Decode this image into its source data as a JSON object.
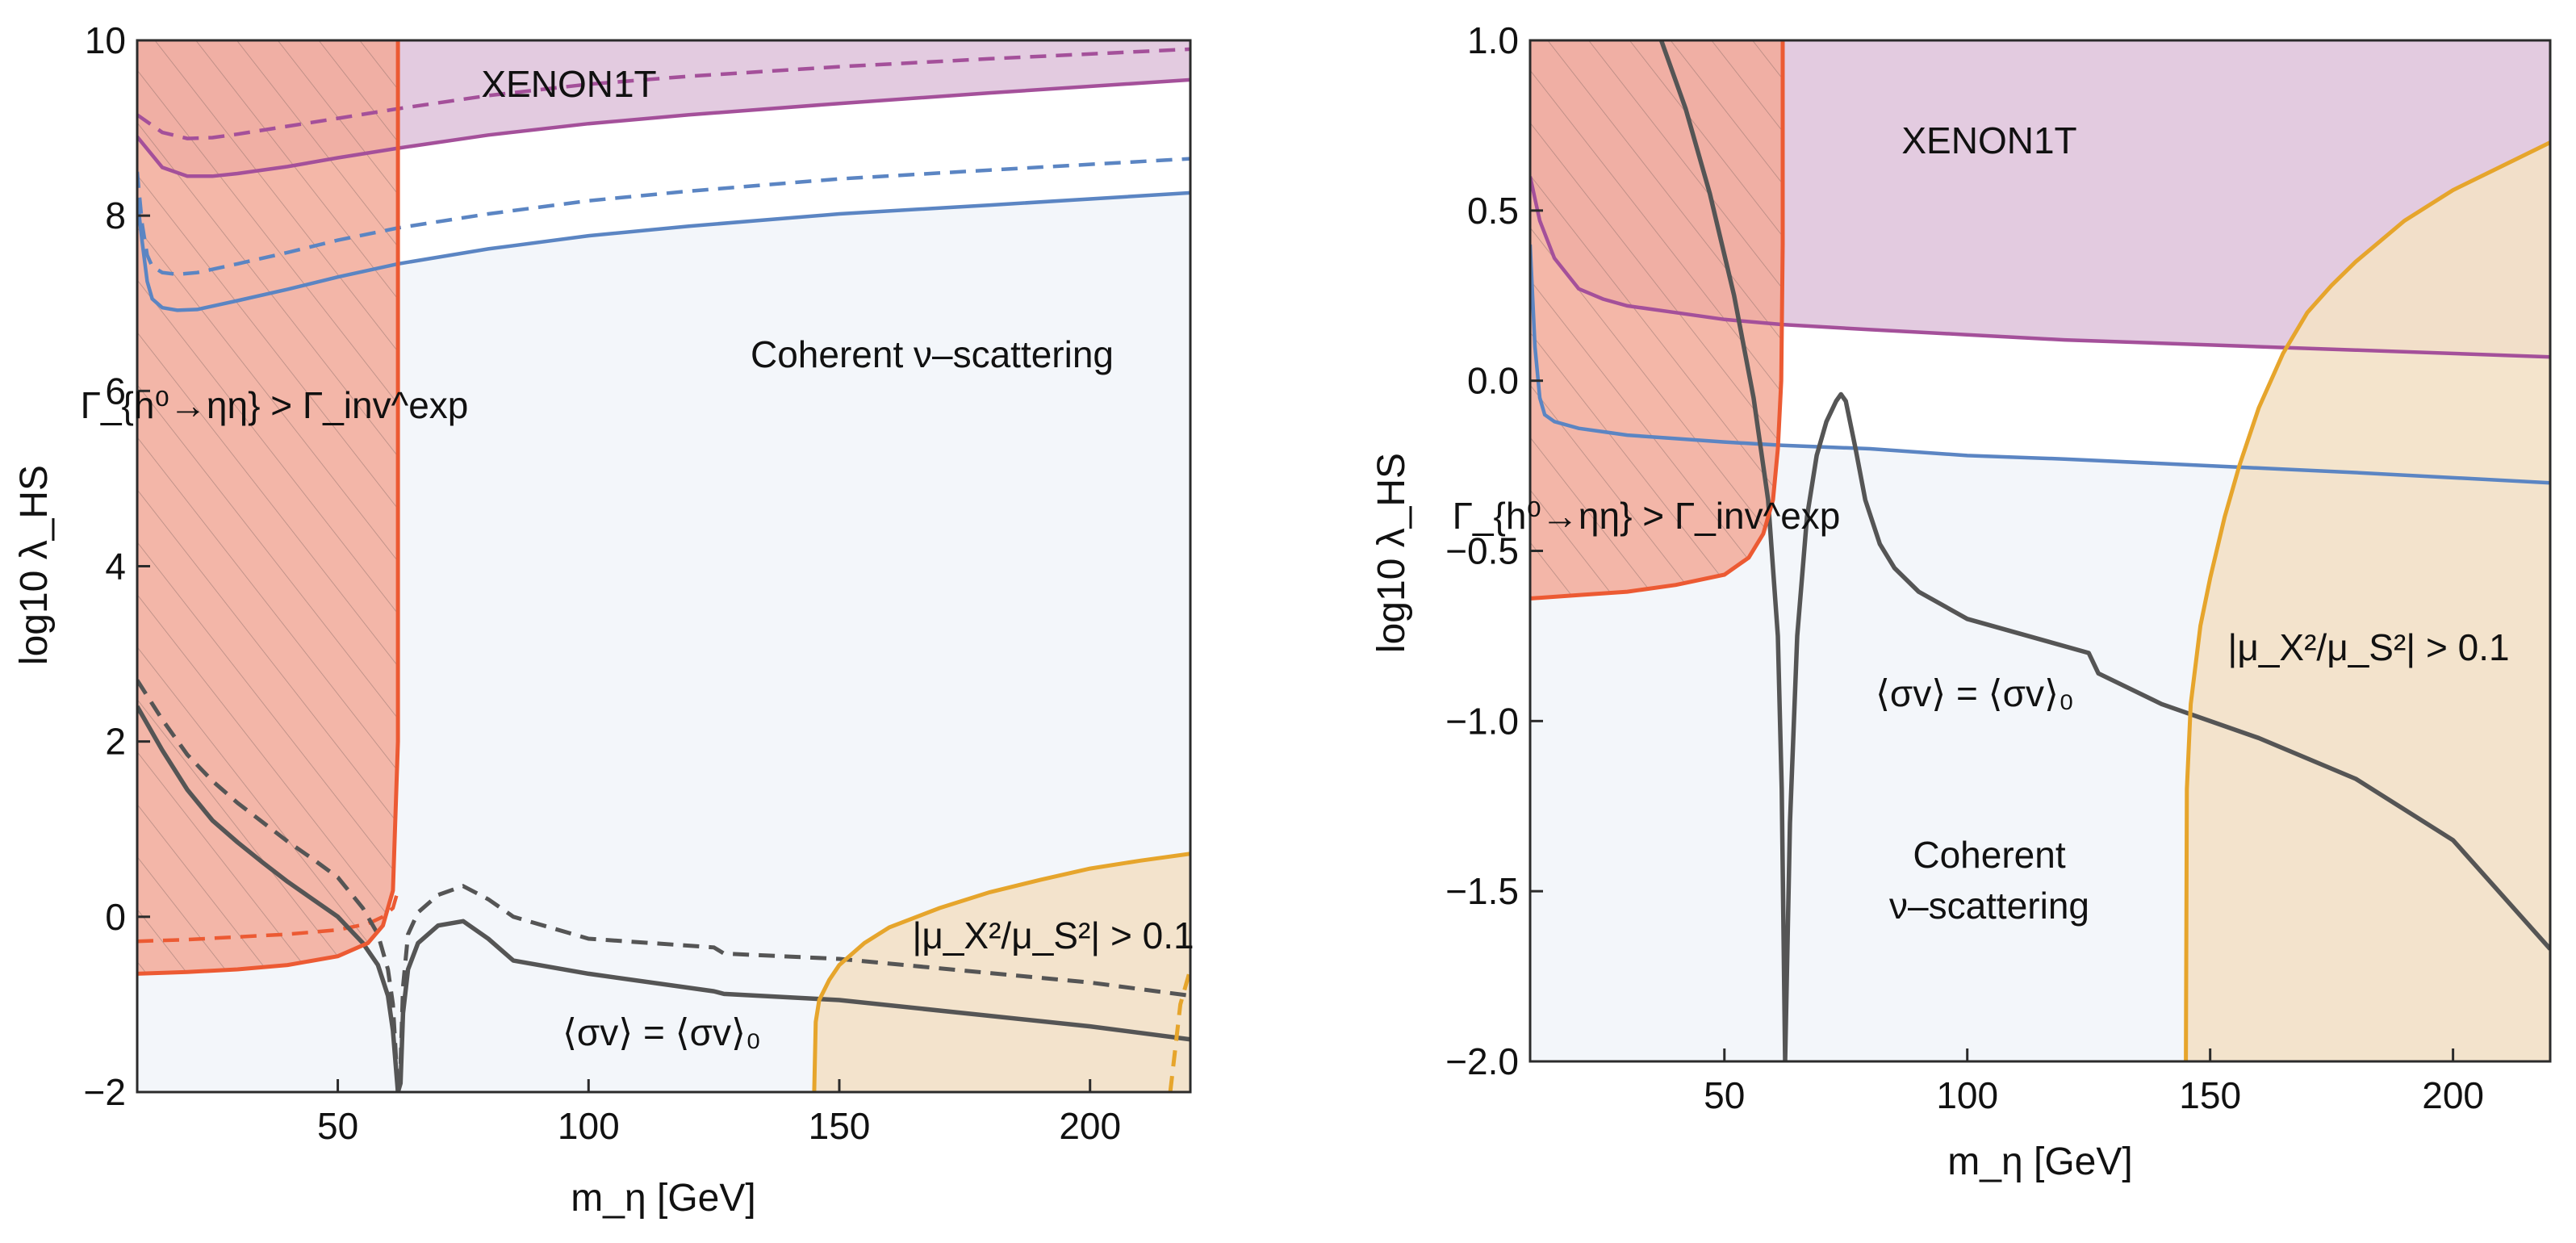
{
  "chart_data": [
    {
      "type": "line",
      "panel": "left",
      "xlabel": "m_η [GeV]",
      "ylabel": "log10 λ_HS",
      "xlim": [
        10,
        220
      ],
      "ylim": [
        -2,
        10
      ],
      "xticks": [
        50,
        100,
        150,
        200
      ],
      "xtick_labels": [
        "50",
        "100",
        "150",
        "200"
      ],
      "yticks": [
        -2,
        0,
        2,
        4,
        6,
        8,
        10
      ],
      "ytick_labels": [
        "−2",
        "0",
        "2",
        "4",
        "6",
        "8",
        "10"
      ],
      "colors": {
        "xenon": "#a4509a",
        "xenon_fill": "#e3cbe0",
        "coherent": "#5b85c3",
        "coherent_fill": "#f3f6fa",
        "higgs": "#ec5a33",
        "higgs_fill": "#f2aa99",
        "mu": "#e6a52c",
        "mu_fill": "#f3e1c7",
        "relic": "#555555"
      },
      "labels": {
        "xenon": "XENON1T",
        "coherent": "Coherent ν–scattering",
        "higgs": "Γ_{h⁰→ηη} > Γ_inv^exp",
        "mu": "|μ_X²/μ_S²| > 0.1",
        "relic": "⟨σv⟩ = ⟨σv⟩₀"
      },
      "series": [
        {
          "name": "xenon_solid",
          "x": [
            10,
            15,
            20,
            25,
            30,
            40,
            50,
            62,
            80,
            100,
            120,
            150,
            180,
            220
          ],
          "y": [
            8.9,
            8.55,
            8.45,
            8.45,
            8.48,
            8.56,
            8.66,
            8.77,
            8.92,
            9.05,
            9.15,
            9.28,
            9.4,
            9.55
          ]
        },
        {
          "name": "xenon_dashed",
          "x": [
            10,
            15,
            20,
            25,
            30,
            40,
            50,
            62,
            80,
            100,
            120,
            150,
            180,
            220
          ],
          "y": [
            9.15,
            8.95,
            8.88,
            8.89,
            8.93,
            9.02,
            9.11,
            9.22,
            9.37,
            9.5,
            9.59,
            9.7,
            9.79,
            9.9
          ]
        },
        {
          "name": "coherent_solid",
          "x": [
            10,
            11,
            12,
            13,
            15,
            18,
            22,
            26,
            30,
            40,
            50,
            62,
            80,
            100,
            120,
            150,
            180,
            220
          ],
          "y": [
            8.2,
            7.7,
            7.25,
            7.05,
            6.95,
            6.92,
            6.93,
            6.98,
            7.03,
            7.16,
            7.3,
            7.45,
            7.62,
            7.77,
            7.88,
            8.02,
            8.12,
            8.26
          ]
        },
        {
          "name": "coherent_dashed",
          "x": [
            10,
            11,
            12,
            13,
            15,
            18,
            22,
            26,
            30,
            40,
            50,
            62,
            80,
            100,
            120,
            150,
            180,
            220
          ],
          "y": [
            8.5,
            7.9,
            7.55,
            7.42,
            7.35,
            7.33,
            7.35,
            7.4,
            7.45,
            7.58,
            7.72,
            7.86,
            8.02,
            8.17,
            8.28,
            8.42,
            8.52,
            8.65
          ]
        },
        {
          "name": "relic_solid",
          "x": [
            10,
            15,
            20,
            25,
            30,
            35,
            40,
            45,
            50,
            55,
            58,
            60,
            61,
            62,
            62.5,
            63,
            64,
            66,
            70,
            75,
            80,
            85,
            100,
            125,
            127,
            150,
            200,
            220
          ],
          "y": [
            2.4,
            1.9,
            1.45,
            1.1,
            0.85,
            0.62,
            0.4,
            0.2,
            0.0,
            -0.3,
            -0.55,
            -0.9,
            -1.3,
            -2.0,
            -1.9,
            -1.1,
            -0.6,
            -0.3,
            -0.1,
            -0.05,
            -0.25,
            -0.5,
            -0.65,
            -0.85,
            -0.88,
            -0.95,
            -1.25,
            -1.4
          ]
        },
        {
          "name": "relic_dashed",
          "x": [
            10,
            15,
            20,
            25,
            30,
            35,
            40,
            45,
            50,
            55,
            58,
            60,
            61,
            62,
            62.5,
            63,
            64,
            66,
            70,
            75,
            80,
            85,
            100,
            125,
            127,
            150,
            200,
            220
          ],
          "y": [
            2.7,
            2.25,
            1.85,
            1.55,
            1.3,
            1.08,
            0.86,
            0.66,
            0.45,
            0.1,
            -0.2,
            -0.6,
            -1.0,
            -2.0,
            -1.7,
            -0.8,
            -0.2,
            0.05,
            0.25,
            0.35,
            0.2,
            0.0,
            -0.25,
            -0.35,
            -0.42,
            -0.48,
            -0.75,
            -0.9
          ]
        },
        {
          "name": "higgs_boundary",
          "x": [
            10,
            20,
            30,
            40,
            50,
            56,
            59,
            61,
            62,
            62
          ],
          "y": [
            -0.65,
            -0.63,
            -0.6,
            -0.55,
            -0.45,
            -0.3,
            -0.1,
            0.3,
            2.0,
            10
          ]
        },
        {
          "name": "higgs_dashed",
          "x": [
            10,
            20,
            30,
            40,
            50,
            56,
            59,
            61,
            62
          ],
          "y": [
            -0.28,
            -0.26,
            -0.23,
            -0.2,
            -0.15,
            -0.08,
            0.0,
            0.1,
            0.3
          ]
        },
        {
          "name": "mu_boundary",
          "x": [
            145,
            145.3,
            146,
            148,
            150,
            155,
            160,
            170,
            180,
            190,
            200,
            210,
            220
          ],
          "y": [
            -2,
            -1.2,
            -0.95,
            -0.72,
            -0.55,
            -0.3,
            -0.12,
            0.1,
            0.28,
            0.42,
            0.55,
            0.64,
            0.72
          ]
        },
        {
          "name": "mu_dashed",
          "x": [
            216,
            217,
            218,
            219,
            220
          ],
          "y": [
            -2,
            -1.5,
            -1.0,
            -0.8,
            -0.6
          ]
        }
      ]
    },
    {
      "type": "line",
      "panel": "right",
      "xlabel": "m_η [GeV]",
      "ylabel": "log10 λ_HS",
      "xlim": [
        10,
        220
      ],
      "ylim": [
        -2.0,
        1.0
      ],
      "xticks": [
        50,
        100,
        150,
        200
      ],
      "xtick_labels": [
        "50",
        "100",
        "150",
        "200"
      ],
      "yticks": [
        -2.0,
        -1.5,
        -1.0,
        -0.5,
        0.0,
        0.5,
        1.0
      ],
      "ytick_labels": [
        "−2.0",
        "−1.5",
        "−1.0",
        "−0.5",
        "0.0",
        "0.5",
        "1.0"
      ],
      "colors": {
        "xenon": "#a4509a",
        "xenon_fill": "#e3cbe0",
        "coherent": "#5b85c3",
        "coherent_fill": "#f3f6fa",
        "higgs": "#ec5a33",
        "higgs_fill": "#f2aa99",
        "mu": "#e6a52c",
        "mu_fill": "#f3e1c7",
        "relic": "#555555"
      },
      "labels": {
        "xenon": "XENON1T",
        "coherent_line1": "Coherent",
        "coherent_line2": "ν–scattering",
        "higgs": "Γ_{h⁰→ηη} > Γ_inv^exp",
        "mu": "|μ_X²/μ_S²| > 0.1",
        "relic": "⟨σv⟩ = ⟨σv⟩₀"
      },
      "series": [
        {
          "name": "xenon_solid",
          "x": [
            10,
            12,
            15,
            20,
            25,
            30,
            40,
            50,
            62,
            80,
            100,
            120,
            150,
            180,
            220
          ],
          "y": [
            0.6,
            0.47,
            0.36,
            0.27,
            0.24,
            0.22,
            0.2,
            0.18,
            0.165,
            0.15,
            0.135,
            0.12,
            0.105,
            0.09,
            0.07
          ]
        },
        {
          "name": "coherent_solid",
          "x": [
            10,
            11,
            12,
            13,
            15,
            20,
            25,
            30,
            40,
            50,
            62,
            80,
            100,
            120,
            150,
            180,
            220
          ],
          "y": [
            0.4,
            0.1,
            -0.05,
            -0.1,
            -0.12,
            -0.14,
            -0.15,
            -0.16,
            -0.17,
            -0.18,
            -0.19,
            -0.2,
            -0.22,
            -0.23,
            -0.25,
            -0.27,
            -0.3
          ]
        },
        {
          "name": "relic_solid",
          "x": [
            37,
            42,
            47,
            52,
            56,
            59,
            61,
            61.8,
            62.5,
            63.5,
            65,
            67,
            69,
            71,
            73,
            74,
            75,
            77,
            79,
            82,
            85,
            90,
            100,
            110,
            125,
            127,
            140,
            160,
            180,
            200,
            220
          ],
          "y": [
            1.0,
            0.8,
            0.55,
            0.25,
            -0.05,
            -0.35,
            -0.75,
            -1.2,
            -2.0,
            -1.3,
            -0.75,
            -0.4,
            -0.22,
            -0.12,
            -0.06,
            -0.04,
            -0.06,
            -0.2,
            -0.35,
            -0.48,
            -0.55,
            -0.62,
            -0.7,
            -0.74,
            -0.8,
            -0.86,
            -0.95,
            -1.05,
            -1.17,
            -1.35,
            -1.67
          ]
        },
        {
          "name": "higgs_boundary",
          "x": [
            10,
            20,
            30,
            40,
            50,
            55,
            58,
            60,
            61,
            61.7,
            62,
            62
          ],
          "y": [
            -0.64,
            -0.63,
            -0.62,
            -0.6,
            -0.57,
            -0.52,
            -0.45,
            -0.35,
            -0.2,
            0.0,
            0.4,
            1.0
          ]
        },
        {
          "name": "mu_boundary",
          "x": [
            145,
            145.2,
            146,
            148,
            150,
            153,
            156,
            160,
            165,
            170,
            175,
            180,
            190,
            200,
            210,
            220
          ],
          "y": [
            -2.0,
            -1.2,
            -0.95,
            -0.72,
            -0.58,
            -0.4,
            -0.25,
            -0.08,
            0.08,
            0.2,
            0.28,
            0.35,
            0.47,
            0.56,
            0.63,
            0.7
          ]
        }
      ]
    }
  ]
}
